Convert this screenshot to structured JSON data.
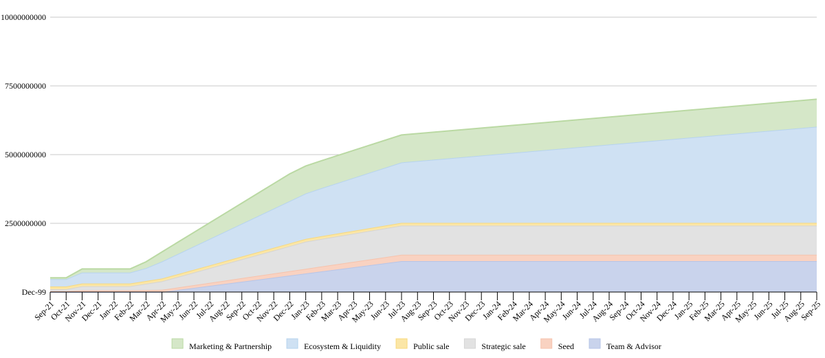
{
  "chart_data": {
    "type": "area",
    "stacked": true,
    "categories": [
      "Sep-21",
      "Oct-21",
      "Nov-21",
      "Dec-21",
      "Jan-22",
      "Feb-22",
      "Mar-22",
      "Apr-22",
      "May-22",
      "Jun-22",
      "Jul-22",
      "Aug-22",
      "Sep-22",
      "Oct-22",
      "Nov-22",
      "Dec-22",
      "Jan-23",
      "Feb-23",
      "Mar-23",
      "Apr-23",
      "May-23",
      "Jun-23",
      "Jul-23",
      "Aug-23",
      "Sep-23",
      "Oct-23",
      "Nov-23",
      "Dec-23",
      "Jan-24",
      "Feb-24",
      "Mar-24",
      "Apr-24",
      "May-24",
      "Jun-24",
      "Jul-24",
      "Aug-24",
      "Sep-24",
      "Oct-24",
      "Nov-24",
      "Dec-24",
      "Jan-25",
      "Feb-25",
      "Mar-25",
      "Apr-25",
      "May-25",
      "Jun-25",
      "Jul-25",
      "Aug-25",
      "Sep-25"
    ],
    "ylim": [
      0,
      10000000000
    ],
    "y_ticks": [
      0,
      2500000000,
      5000000000,
      7500000000,
      10000000000
    ],
    "y_tick_labels": [
      "Dec-99",
      "2500000000",
      "5000000000",
      "7500000000",
      "10000000000"
    ],
    "grid": true,
    "legend_position": "bottom",
    "series": [
      {
        "name": "Team & Advisor",
        "color": "#c9d3ec",
        "line_color": "#b7c5e8",
        "values": [
          0,
          0,
          0,
          0,
          0,
          0,
          0,
          0,
          75000000,
          150000000,
          225000000,
          300000000,
          375000000,
          450000000,
          525000000,
          600000000,
          675000000,
          750000000,
          825000000,
          900000000,
          975000000,
          1050000000,
          1125000000,
          1125000000,
          1125000000,
          1125000000,
          1125000000,
          1125000000,
          1125000000,
          1125000000,
          1125000000,
          1125000000,
          1125000000,
          1125000000,
          1125000000,
          1125000000,
          1125000000,
          1125000000,
          1125000000,
          1125000000,
          1125000000,
          1125000000,
          1125000000,
          1125000000,
          1125000000,
          1125000000,
          1125000000,
          1125000000,
          1125000000
        ]
      },
      {
        "name": "Seed",
        "color": "#f9d2c1",
        "line_color": "#f6c3ad",
        "values": [
          30000000,
          30000000,
          60000000,
          60000000,
          60000000,
          60000000,
          70000000,
          80000000,
          90000000,
          100000000,
          110000000,
          120000000,
          130000000,
          140000000,
          150000000,
          160000000,
          170000000,
          180000000,
          190000000,
          200000000,
          210000000,
          220000000,
          230000000,
          230000000,
          230000000,
          230000000,
          230000000,
          230000000,
          230000000,
          230000000,
          230000000,
          230000000,
          230000000,
          230000000,
          230000000,
          230000000,
          230000000,
          230000000,
          230000000,
          230000000,
          230000000,
          230000000,
          230000000,
          230000000,
          230000000,
          230000000,
          230000000,
          230000000,
          230000000
        ]
      },
      {
        "name": "Strategic sale",
        "color": "#e2e2e2",
        "line_color": "#d5d5d5",
        "values": [
          70000000,
          70000000,
          150000000,
          150000000,
          150000000,
          150000000,
          230000000,
          310000000,
          385000000,
          460000000,
          535000000,
          610000000,
          685000000,
          760000000,
          835000000,
          910000000,
          985000000,
          1000000000,
          1012000000,
          1024000000,
          1036000000,
          1048000000,
          1060000000,
          1060000000,
          1060000000,
          1060000000,
          1060000000,
          1060000000,
          1060000000,
          1060000000,
          1060000000,
          1060000000,
          1060000000,
          1060000000,
          1060000000,
          1060000000,
          1060000000,
          1060000000,
          1060000000,
          1060000000,
          1060000000,
          1060000000,
          1060000000,
          1060000000,
          1060000000,
          1060000000,
          1060000000,
          1060000000,
          1060000000
        ]
      },
      {
        "name": "Public sale",
        "color": "#fbe6a6",
        "line_color": "#f8d97c",
        "values": [
          100000000,
          100000000,
          100000000,
          100000000,
          100000000,
          100000000,
          100000000,
          100000000,
          100000000,
          100000000,
          100000000,
          100000000,
          100000000,
          100000000,
          100000000,
          100000000,
          100000000,
          100000000,
          100000000,
          100000000,
          100000000,
          100000000,
          100000000,
          100000000,
          100000000,
          100000000,
          100000000,
          100000000,
          100000000,
          100000000,
          100000000,
          100000000,
          100000000,
          100000000,
          100000000,
          100000000,
          100000000,
          100000000,
          100000000,
          100000000,
          100000000,
          100000000,
          100000000,
          100000000,
          100000000,
          100000000,
          100000000,
          100000000,
          100000000
        ]
      },
      {
        "name": "Ecosystem & Liquidity",
        "color": "#cfe1f3",
        "line_color": "#b6d3ee",
        "values": [
          270000000,
          270000000,
          400000000,
          400000000,
          400000000,
          400000000,
          470000000,
          620000000,
          735000000,
          850000000,
          965000000,
          1080000000,
          1195000000,
          1310000000,
          1425000000,
          1540000000,
          1655000000,
          1750000000,
          1840000000,
          1930000000,
          2020000000,
          2110000000,
          2200000000,
          2250000000,
          2300000000,
          2350000000,
          2400000000,
          2450000000,
          2500000000,
          2550000000,
          2600000000,
          2650000000,
          2700000000,
          2750000000,
          2800000000,
          2850000000,
          2900000000,
          2950000000,
          3000000000,
          3050000000,
          3100000000,
          3150000000,
          3200000000,
          3250000000,
          3300000000,
          3350000000,
          3400000000,
          3450000000,
          3500000000
        ]
      },
      {
        "name": "Marketing & Partnership",
        "color": "#d5e7c8",
        "line_color": "#bad9a3",
        "values": [
          50000000,
          50000000,
          130000000,
          130000000,
          130000000,
          130000000,
          230000000,
          350000000,
          430000000,
          510000000,
          590000000,
          670000000,
          750000000,
          830000000,
          910000000,
          990000000,
          1000000000,
          1000000000,
          1000000000,
          1000000000,
          1000000000,
          1000000000,
          1000000000,
          1000000000,
          1000000000,
          1000000000,
          1000000000,
          1000000000,
          1000000000,
          1000000000,
          1000000000,
          1000000000,
          1000000000,
          1000000000,
          1000000000,
          1000000000,
          1000000000,
          1000000000,
          1000000000,
          1000000000,
          1000000000,
          1000000000,
          1000000000,
          1000000000,
          1000000000,
          1000000000,
          1000000000,
          1000000000,
          1000000000
        ]
      }
    ],
    "legend_order": [
      "Marketing & Partnership",
      "Ecosystem & Liquidity",
      "Public sale",
      "Strategic sale",
      "Seed",
      "Team & Advisor"
    ]
  }
}
